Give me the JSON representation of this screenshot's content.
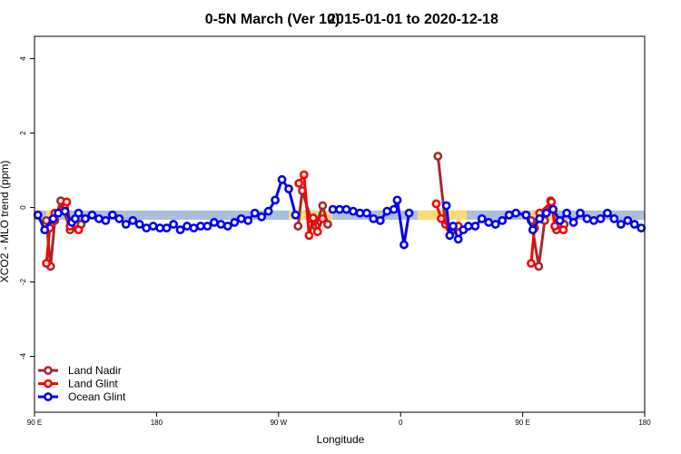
{
  "chart_data": {
    "type": "line",
    "title_main": "0-5N March (Ver 10)",
    "title_dates": "2015-01-01 to 2020-12-18",
    "xlabel": "Longitude",
    "ylabel": "XCO2 - MLO trend (ppm)",
    "xlim": [
      0,
      360
    ],
    "ylim": [
      -5.5,
      4.6
    ],
    "x_ticks": [
      {
        "pos": 0,
        "label": "90 E"
      },
      {
        "pos": 72,
        "label": "180"
      },
      {
        "pos": 144,
        "label": "90 W"
      },
      {
        "pos": 216,
        "label": "0"
      },
      {
        "pos": 288,
        "label": "90 E"
      },
      {
        "pos": 360,
        "label": "180"
      }
    ],
    "y_ticks": [
      -4,
      -2,
      0,
      2,
      4
    ],
    "bands": [
      {
        "name": "ocean-range",
        "color": "#a9bfdc",
        "x_ranges": [
          [
            0,
            360
          ]
        ],
        "y_range": [
          -0.33,
          -0.08
        ]
      },
      {
        "name": "land-range",
        "color": "#fbd976",
        "x_ranges": [
          [
            7,
            12
          ],
          [
            150,
            176
          ],
          [
            226,
            255
          ],
          [
            293,
            307
          ]
        ],
        "y_range": [
          -0.33,
          -0.08
        ]
      }
    ],
    "series": [
      {
        "name": "Land Nadir",
        "color": "#a52a2a",
        "segments": [
          {
            "x": [
              7,
              9.5,
              12,
              15.5,
              21,
              27.5
            ],
            "y": [
              -0.35,
              -1.58,
              -0.35,
              0.18,
              -0.6,
              -0.45
            ]
          },
          {
            "x": [
              155.5,
              158,
              163,
              166,
              170,
              173
            ],
            "y": [
              -0.5,
              0.45,
              -0.3,
              -0.5,
              0.05,
              -0.45
            ]
          },
          {
            "x": [
              238,
              242.5,
              247,
              250
            ],
            "y": [
              1.38,
              -0.45,
              -0.6,
              -0.5
            ]
          },
          {
            "x": [
              293,
              297.5,
              301,
              304.5,
              308,
              312.5
            ],
            "y": [
              -0.35,
              -1.58,
              -0.35,
              0.18,
              -0.6,
              -0.45
            ]
          }
        ]
      },
      {
        "name": "Land Glint",
        "color": "#ff0000",
        "segments": [
          {
            "x": [
              7,
              9,
              12,
              19,
              21,
              26
            ],
            "y": [
              -1.5,
              -0.55,
              -0.15,
              0.15,
              -0.5,
              -0.6
            ]
          },
          {
            "x": [
              156,
              159,
              162,
              164.5,
              167,
              170
            ],
            "y": [
              0.65,
              0.88,
              -0.75,
              -0.28,
              -0.65,
              -0.3
            ]
          },
          {
            "x": [
              237,
              240,
              245,
              247,
              250
            ],
            "y": [
              0.1,
              -0.3,
              -0.55,
              -0.6,
              -0.5
            ]
          },
          {
            "x": [
              293,
              295,
              298,
              305,
              307,
              312
            ],
            "y": [
              -1.5,
              -0.55,
              -0.15,
              0.15,
              -0.5,
              -0.6
            ]
          }
        ]
      },
      {
        "name": "Ocean Glint",
        "color": "#0000ee",
        "segments": [
          {
            "x": [
              2,
              6,
              11,
              14,
              18,
              22,
              24,
              26,
              30,
              34,
              38,
              42,
              46,
              50,
              54,
              58,
              62,
              66,
              70,
              74,
              78,
              82,
              86,
              90,
              94,
              98,
              102,
              106,
              110,
              114,
              118,
              122,
              126,
              130,
              134,
              138,
              142,
              146,
              150,
              154
            ],
            "y": [
              -0.2,
              -0.6,
              -0.3,
              -0.15,
              -0.1,
              -0.4,
              -0.3,
              -0.15,
              -0.3,
              -0.2,
              -0.3,
              -0.35,
              -0.2,
              -0.3,
              -0.45,
              -0.35,
              -0.45,
              -0.55,
              -0.5,
              -0.55,
              -0.55,
              -0.45,
              -0.6,
              -0.5,
              -0.55,
              -0.5,
              -0.5,
              -0.4,
              -0.45,
              -0.5,
              -0.4,
              -0.3,
              -0.35,
              -0.15,
              -0.25,
              -0.1,
              0.2,
              0.75,
              0.5,
              -0.2
            ]
          },
          {
            "x": [
              176,
              180,
              184,
              188,
              192,
              196,
              200,
              204,
              208,
              212,
              214,
              218,
              221
            ],
            "y": [
              -0.05,
              -0.05,
              -0.05,
              -0.1,
              -0.15,
              -0.15,
              -0.3,
              -0.35,
              -0.1,
              -0.05,
              0.2,
              -1.0,
              -0.15
            ]
          },
          {
            "x": [
              243,
              245,
              247,
              250,
              253,
              256,
              260,
              264,
              268,
              272,
              276,
              280,
              284,
              290,
              294,
              298,
              302,
              306,
              310,
              314,
              318,
              322,
              326,
              330,
              334,
              338,
              342,
              346,
              350,
              354,
              358
            ],
            "y": [
              0.05,
              -0.75,
              -0.5,
              -0.85,
              -0.6,
              -0.5,
              -0.5,
              -0.3,
              -0.4,
              -0.45,
              -0.35,
              -0.2,
              -0.15,
              -0.2,
              -0.6,
              -0.3,
              -0.15,
              -0.05,
              -0.35,
              -0.15,
              -0.4,
              -0.15,
              -0.3,
              -0.35,
              -0.3,
              -0.15,
              -0.3,
              -0.45,
              -0.35,
              -0.45,
              -0.55
            ]
          }
        ]
      }
    ],
    "legend_position": "bottom-left"
  }
}
